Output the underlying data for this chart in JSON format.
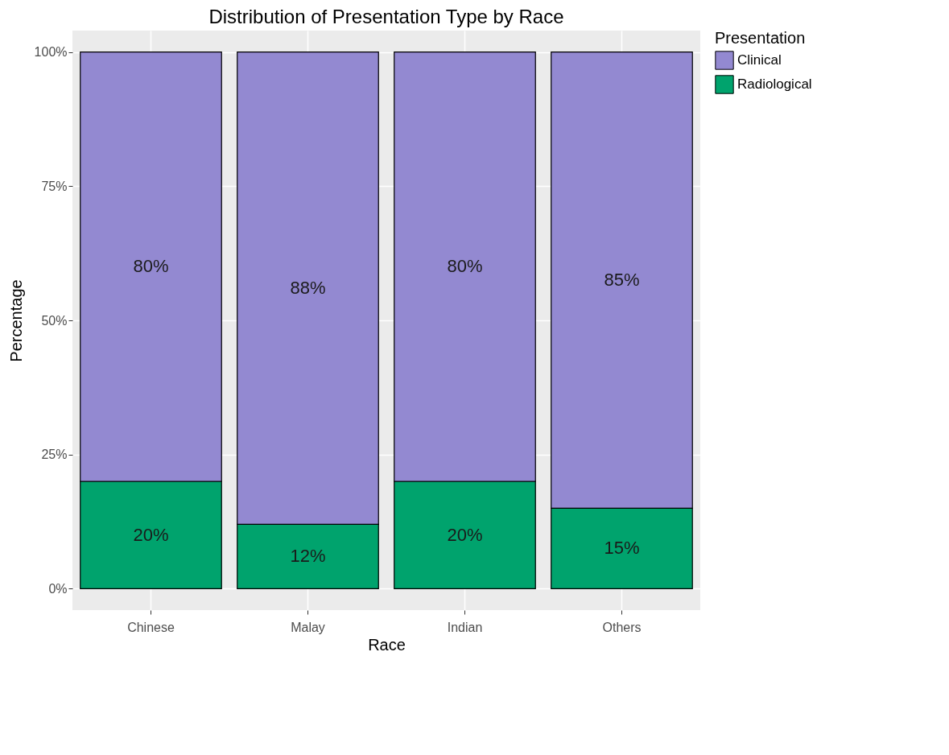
{
  "chart_data": {
    "type": "bar",
    "title": "Distribution of Presentation Type by Race",
    "xlabel": "Race",
    "ylabel": "Percentage",
    "legend_title": "Presentation",
    "categories": [
      "Chinese",
      "Malay",
      "Indian",
      "Others"
    ],
    "stacked": true,
    "series": [
      {
        "name": "Radiological",
        "color": "#00a36d",
        "values": [
          20,
          12,
          20,
          15
        ],
        "value_labels": [
          "20%",
          "12%",
          "20%",
          "15%"
        ]
      },
      {
        "name": "Clinical",
        "color": "#9389d1",
        "values": [
          80,
          88,
          80,
          85
        ],
        "value_labels": [
          "80%",
          "88%",
          "80%",
          "85%"
        ]
      }
    ],
    "ylim": [
      -4,
      104
    ],
    "yticks": [
      {
        "value": 0,
        "label": "0%"
      },
      {
        "value": 25,
        "label": "25%"
      },
      {
        "value": 50,
        "label": "50%"
      },
      {
        "value": 75,
        "label": "75%"
      },
      {
        "value": 100,
        "label": "100%"
      }
    ],
    "grid": true,
    "legend": "right"
  }
}
